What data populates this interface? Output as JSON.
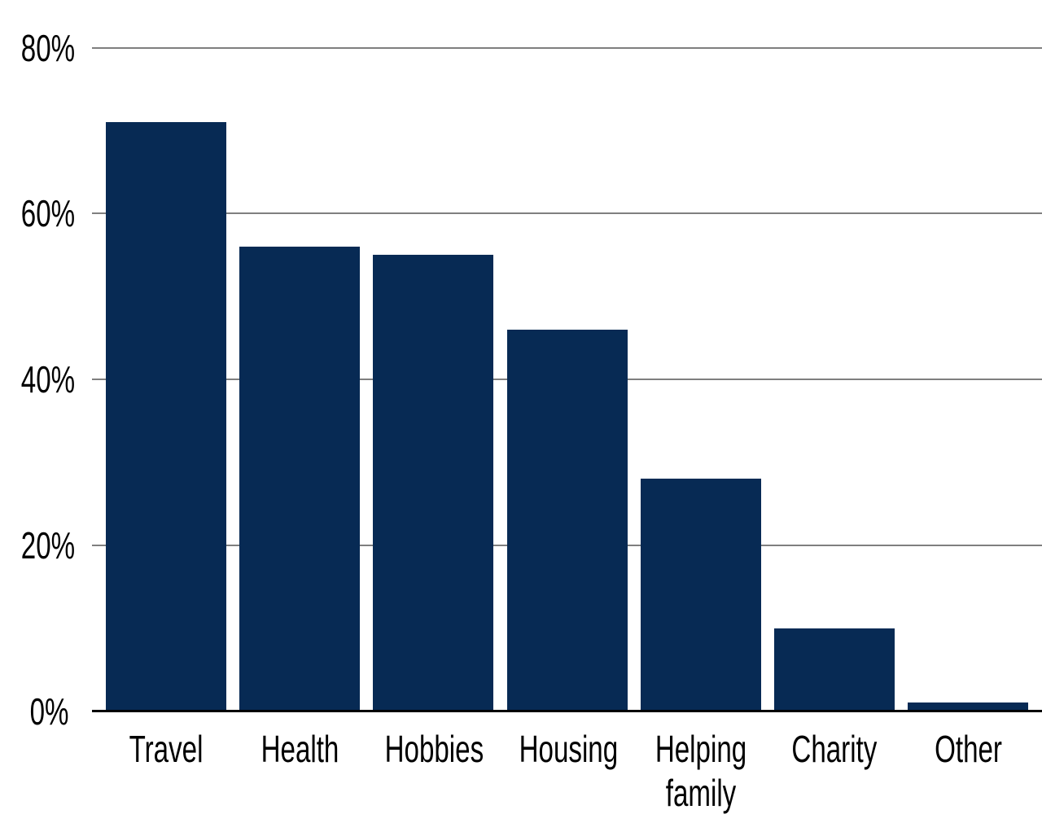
{
  "chart_data": {
    "type": "bar",
    "categories": [
      "Travel",
      "Health",
      "Hobbies",
      "Housing",
      "Helping\nfamily",
      "Charity",
      "Other"
    ],
    "values": [
      71,
      56,
      55,
      46,
      28,
      10,
      1
    ],
    "unit": "%",
    "ylim": [
      0,
      80
    ],
    "yticks": [
      0,
      20,
      40,
      60,
      80
    ],
    "ytick_labels": [
      "0%",
      "20%",
      "40%",
      "60%",
      "80%"
    ],
    "grid": true,
    "gridline_orientation": "horizontal",
    "legend": "none",
    "colors": {
      "bar": "#072A54",
      "gridline": "#7F7F7F",
      "axis_line": "#000000",
      "label_text": "#000000",
      "background": "#FFFFFF"
    }
  }
}
